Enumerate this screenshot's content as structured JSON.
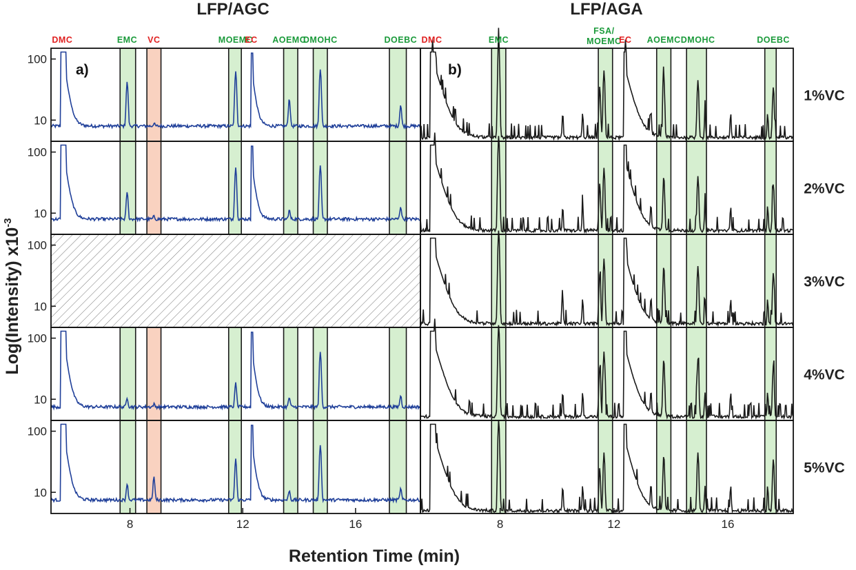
{
  "colors": {
    "blue": "#1f3f99",
    "black": "#1a1a1a",
    "red_label": "#e02020",
    "green_label": "#1a9a3a",
    "green_band": "#d6efd0",
    "red_band": "#f9d2c0"
  },
  "chart_data": [
    {
      "id": "a",
      "type": "line",
      "panel_label": "a)",
      "title": "LFP/AGC",
      "xlabel": "Retention Time (min)",
      "ylabel": "Log(Intensity) x10",
      "ylabel_superscript": "-3",
      "yscale": "log",
      "xlim": [
        5.2,
        18.3
      ],
      "ylim": [
        4.5,
        150
      ],
      "x_ticks": [
        8,
        12,
        16
      ],
      "y_ticks": [
        10,
        100
      ],
      "series_color": "#1f3f99",
      "compounds": [
        {
          "name": "DMC",
          "x": 5.6,
          "color": "red",
          "band": null,
          "peaks": [
            13
          ]
        },
        {
          "name": "EMC",
          "x": 7.9,
          "color": "green",
          "band": [
            7.65,
            8.2
          ],
          "peaks": [
            4.3,
            1.8,
            0.3,
            0.4,
            0.8
          ]
        },
        {
          "name": "VC",
          "x": 8.85,
          "color": "red",
          "band": [
            8.6,
            9.1
          ],
          "peaks": [
            0.1,
            0.1,
            0.1,
            0.1,
            1.3
          ]
        },
        {
          "name": "MOEMC",
          "x": 11.75,
          "color": "green",
          "band": [
            11.5,
            11.95
          ],
          "peaks": [
            6.8,
            6.0,
            0.0,
            1.4,
            3.5
          ]
        },
        {
          "name": "EC",
          "x": 12.3,
          "color": "red",
          "band": null,
          "peaks": [
            12
          ]
        },
        {
          "name": "AOEMC",
          "x": 13.65,
          "color": "green",
          "band": [
            13.45,
            13.95
          ],
          "peaks": [
            1.8,
            0.4,
            0.0,
            0.4,
            0.4
          ]
        },
        {
          "name": "DMOHC",
          "x": 14.75,
          "color": "green",
          "band": [
            14.5,
            15.0
          ],
          "peaks": [
            7.5,
            6.5,
            0.0,
            6.5,
            6.5
          ]
        },
        {
          "name": "DOEBC",
          "x": 17.6,
          "color": "green",
          "band": [
            17.2,
            17.8
          ],
          "peaks": [
            1.2,
            0.6,
            0.0,
            0.5,
            0.5
          ]
        }
      ],
      "traces": [
        {
          "name": "1%VC",
          "missing": false,
          "baseline": 8,
          "dmc_peak": 130,
          "ec_peak": 125
        },
        {
          "name": "2%VC",
          "missing": false,
          "baseline": 8,
          "dmc_peak": 130,
          "ec_peak": 125
        },
        {
          "name": "3%VC",
          "missing": true
        },
        {
          "name": "4%VC",
          "missing": false,
          "baseline": 7.5,
          "dmc_peak": 130,
          "ec_peak": 125
        },
        {
          "name": "5%VC",
          "missing": false,
          "baseline": 7.5,
          "dmc_peak": 130,
          "ec_peak": 125
        }
      ]
    },
    {
      "id": "b",
      "type": "line",
      "panel_label": "b)",
      "title": "LFP/AGA",
      "xlabel": "Retention Time (min)",
      "yscale": "log",
      "xlim": [
        5.2,
        18.3
      ],
      "ylim": [
        4.5,
        150
      ],
      "x_ticks": [
        8,
        12,
        16
      ],
      "series_color": "#1a1a1a",
      "compounds": [
        {
          "name": "DMC",
          "x": 5.6,
          "color": "red",
          "band": null
        },
        {
          "name": "EMC",
          "x": 7.95,
          "color": "green",
          "band": [
            7.7,
            8.2
          ],
          "peaks": [
            200,
            180,
            170,
            160,
            150
          ]
        },
        {
          "name": "FSA/\nMOEMC",
          "x": 11.65,
          "color": "green",
          "band": [
            11.45,
            11.95
          ],
          "peaks": [
            60,
            50,
            55,
            55,
            40
          ]
        },
        {
          "name": "EC",
          "x": 12.4,
          "color": "red",
          "band": null
        },
        {
          "name": "AOEMC",
          "x": 13.75,
          "color": "green",
          "band": [
            13.5,
            14.0
          ],
          "peaks": [
            45,
            35,
            40,
            40,
            35
          ]
        },
        {
          "name": "DMOHC",
          "x": 14.95,
          "color": "green",
          "band": [
            14.55,
            15.25
          ],
          "peaks": [
            40,
            35,
            40,
            40,
            40
          ]
        },
        {
          "name": "DOEBC",
          "x": 17.6,
          "color": "green",
          "band": [
            17.3,
            17.7
          ],
          "peaks": [
            30,
            25,
            30,
            30,
            30
          ]
        }
      ],
      "traces": [
        {
          "name": "1%VC",
          "baseline": 5.2
        },
        {
          "name": "2%VC",
          "baseline": 5.2
        },
        {
          "name": "3%VC",
          "baseline": 5.2
        },
        {
          "name": "4%VC",
          "baseline": 5.2
        },
        {
          "name": "5%VC",
          "baseline": 5.0
        }
      ]
    }
  ],
  "row_labels": [
    "1%VC",
    "2%VC",
    "3%VC",
    "4%VC",
    "5%VC"
  ]
}
